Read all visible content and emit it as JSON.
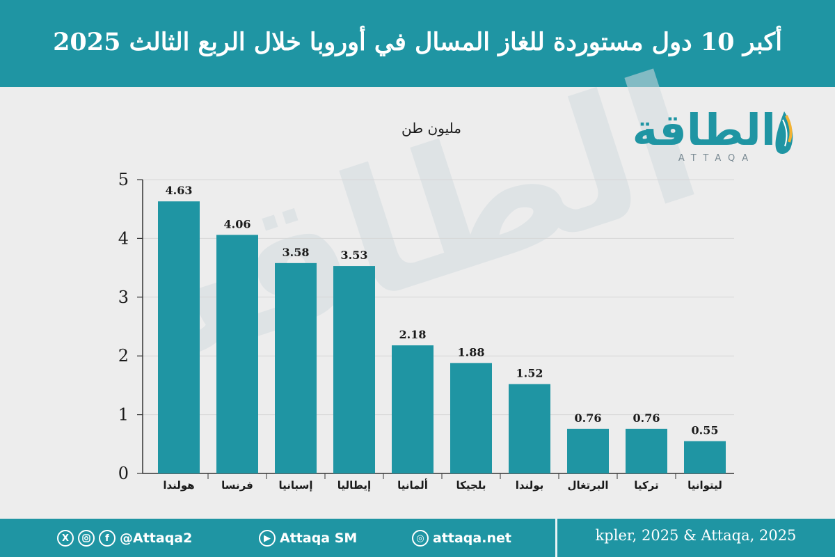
{
  "header": {
    "title": "أكبر 10 دول مستوردة للغاز المسال في أوروبا خلال الربع الثالث 2025"
  },
  "logo": {
    "arabic": "الطاقة",
    "latin": "ATTAQA"
  },
  "footer": {
    "social_handle": "@Attaqa2",
    "youtube_channel": "Attaqa SM",
    "website": "attaqa.net",
    "source": "kpler, 2025 & Attaqa, 2025",
    "icons": [
      "x-icon",
      "instagram-icon",
      "facebook-icon",
      "youtube-icon",
      "web-icon"
    ]
  },
  "colors": {
    "brand": "#1f95a3",
    "bar": "#1f95a3",
    "background": "#ededed"
  },
  "chart_data": {
    "type": "bar",
    "title": "أكبر 10 دول مستوردة للغاز المسال في أوروبا خلال الربع الثالث 2025",
    "ylabel": "مليون طن",
    "categories": [
      "هولندا",
      "فرنسا",
      "إسبانيا",
      "إيطاليا",
      "ألمانيا",
      "بلجيكا",
      "بولندا",
      "البرتغال",
      "تركيا",
      "ليتوانيا"
    ],
    "values": [
      4.63,
      4.06,
      3.58,
      3.53,
      2.18,
      1.88,
      1.52,
      0.76,
      0.76,
      0.55
    ],
    "value_labels": [
      "4.63",
      "4.06",
      "3.58",
      "3.53",
      "2.18",
      "1.88",
      "1.52",
      "0.76",
      "0.76",
      "0.55"
    ],
    "yticks": [
      "0",
      "1",
      "2",
      "3",
      "4",
      "5"
    ],
    "ylim": [
      0,
      5
    ],
    "grid": true,
    "legend": "none"
  }
}
